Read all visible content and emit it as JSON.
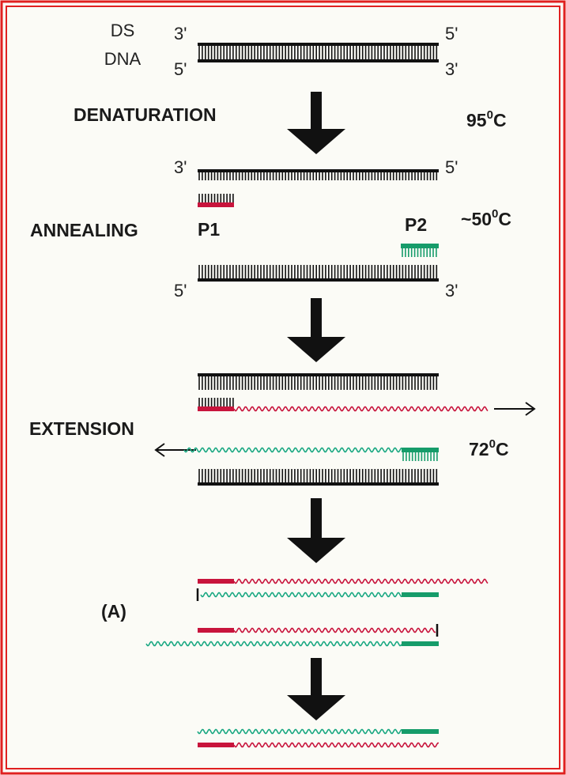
{
  "colors": {
    "background": "#fbfbf6",
    "border": "#e02020",
    "dna_strand": "#111111",
    "primer_1": "#c8143c",
    "primer_2": "#169c6a",
    "extension_1": "#c8143c",
    "extension_2": "#1aa882",
    "arrow": "#111111"
  },
  "labels": {
    "ds": "DS",
    "dna": "DNA",
    "three_prime": "3'",
    "five_prime": "5'",
    "denaturation": "DENATURATION",
    "annealing": "ANNEALING",
    "extension": "EXTENSION",
    "p1": "P1",
    "p2": "P2",
    "panel": "(A)"
  },
  "temperatures": {
    "denaturation": {
      "prefix": "",
      "value": "95",
      "degree": "0",
      "unit": "C"
    },
    "annealing": {
      "prefix": "~",
      "value": "50",
      "degree": "0",
      "unit": "C"
    },
    "extension": {
      "prefix": "",
      "value": "72",
      "degree": "0",
      "unit": "C"
    }
  }
}
